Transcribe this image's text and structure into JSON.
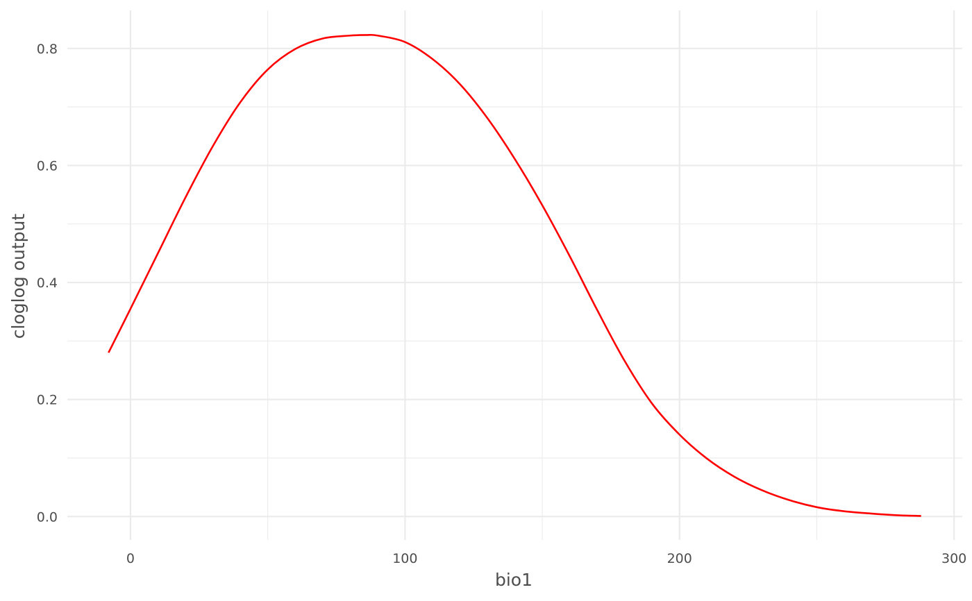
{
  "chart_data": {
    "type": "line",
    "title": "",
    "xlabel": "bio1",
    "ylabel": "cloglog output",
    "xlim": [
      -23,
      303
    ],
    "ylim": [
      -0.04,
      0.865
    ],
    "x_ticks": [
      0,
      100,
      200,
      300
    ],
    "x_tick_labels": [
      "0",
      "100",
      "200",
      "300"
    ],
    "x_minor_ticks": [
      50,
      150,
      250
    ],
    "y_ticks": [
      0.0,
      0.2,
      0.4,
      0.6,
      0.8
    ],
    "y_tick_labels": [
      "0.0",
      "0.2",
      "0.4",
      "0.6",
      "0.8"
    ],
    "y_minor_ticks": [
      0.1,
      0.3,
      0.5,
      0.7
    ],
    "grid": true,
    "legend": "none",
    "series_color": "#ff0000",
    "series": [
      {
        "x": [
          -8,
          0,
          10,
          20,
          30,
          40,
          50,
          60,
          70,
          80,
          86,
          90,
          100,
          110,
          120,
          130,
          140,
          150,
          160,
          170,
          180,
          190,
          200,
          210,
          220,
          230,
          240,
          250,
          260,
          270,
          280,
          288
        ],
        "y": [
          0.28,
          0.355,
          0.45,
          0.545,
          0.633,
          0.708,
          0.764,
          0.799,
          0.817,
          0.822,
          0.823,
          0.822,
          0.811,
          0.782,
          0.739,
          0.681,
          0.611,
          0.532,
          0.445,
          0.353,
          0.266,
          0.193,
          0.14,
          0.099,
          0.068,
          0.045,
          0.028,
          0.016,
          0.009,
          0.005,
          0.002,
          0.001
        ]
      }
    ]
  }
}
